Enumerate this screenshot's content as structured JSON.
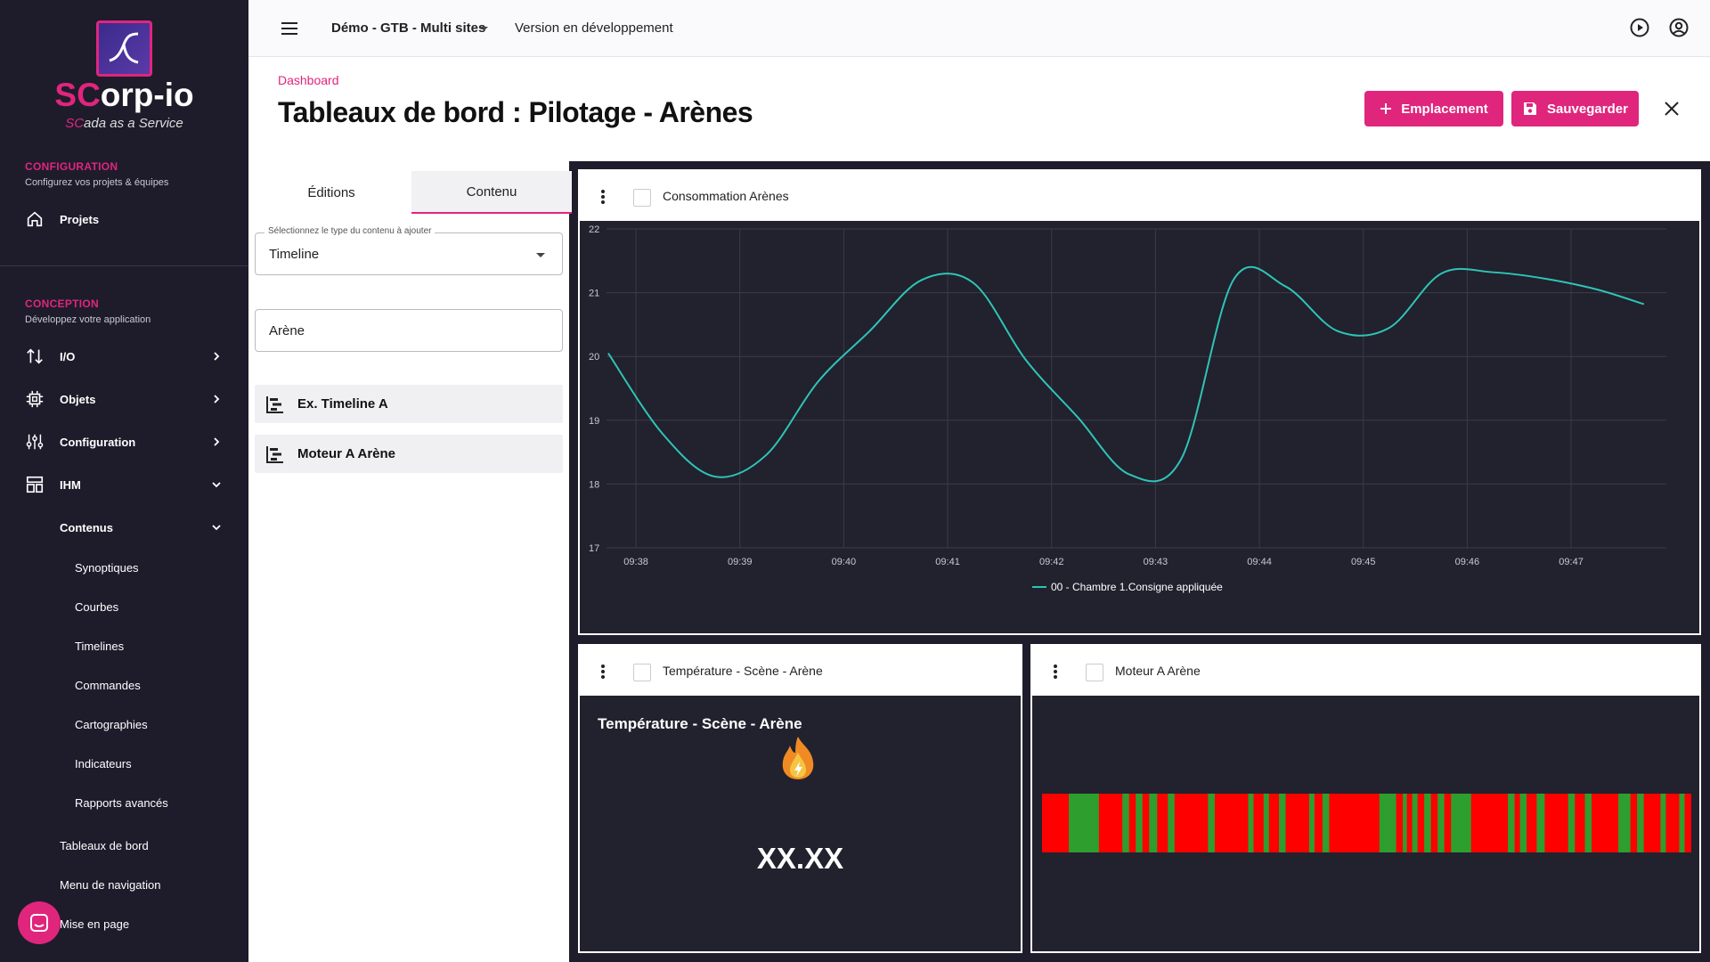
{
  "brand": {
    "name_accent": "SC",
    "name_rest": "orp-io",
    "tagline_accent": "SC",
    "tagline_rest": "ada as a Service"
  },
  "sidebar": {
    "config_title": "CONFIGURATION",
    "config_sub": "Configurez vos projets & équipes",
    "projects": "Projets",
    "conception_title": "CONCEPTION",
    "conception_sub": "Développez votre application",
    "items": [
      "I/O",
      "Objets",
      "Configuration",
      "IHM"
    ],
    "contenus": "Contenus",
    "contenus_items": [
      "Synoptiques",
      "Courbes",
      "Timelines",
      "Commandes",
      "Cartographies",
      "Indicateurs",
      "Rapports avancés"
    ],
    "bottom_items": [
      "Tableaux de bord",
      "Menu de navigation",
      "Mise en page"
    ]
  },
  "topbar": {
    "project": "Démo - GTB - Multi sites",
    "version": "Version en développement"
  },
  "header": {
    "breadcrumb": "Dashboard",
    "title": "Tableaux de bord : Pilotage - Arènes",
    "add_label": "Emplacement",
    "save_label": "Sauvegarder"
  },
  "panel": {
    "tabs": [
      "Éditions",
      "Contenu"
    ],
    "select_legend": "Sélectionnez le type du contenu à ajouter",
    "select_value": "Timeline",
    "search_value": "Arène",
    "items": [
      "Ex. Timeline A",
      "Moteur A Arène"
    ]
  },
  "widgets": {
    "chart_title": "Consommation Arènes",
    "temp_title": "Température - Scène - Arène",
    "temp_value": "XX.XX",
    "timeline_title": "Moteur A Arène"
  },
  "colors": {
    "accent": "#e0257d",
    "line": "#2ec4b6",
    "on": "#2e9e2e",
    "off": "#ff0000"
  },
  "chart_data": {
    "type": "line",
    "ylim": [
      17,
      22
    ],
    "yticks": [
      "17",
      "18",
      "19",
      "20",
      "21",
      "22"
    ],
    "xticks": [
      "09:38",
      "09:39",
      "09:40",
      "09:41",
      "09:42",
      "09:43",
      "09:44",
      "09:45",
      "09:46",
      "09:47"
    ],
    "x": [
      "09:37:44",
      "09:38:15",
      "09:38:45",
      "09:39:15",
      "09:39:45",
      "09:40:15",
      "09:40:45",
      "09:41:15",
      "09:41:45",
      "09:42:15",
      "09:42:45",
      "09:43:15",
      "09:43:45",
      "09:44:15",
      "09:44:45",
      "09:45:15",
      "09:45:45",
      "09:46:15",
      "09:46:45",
      "09:47:15",
      "09:47:42"
    ],
    "series": [
      {
        "name": "00 - Chambre 1.Consigne appliquée",
        "values": [
          20.05,
          18.8,
          18.12,
          18.45,
          19.6,
          20.4,
          21.2,
          21.15,
          19.95,
          19.05,
          18.15,
          18.4,
          21.2,
          21.1,
          20.4,
          20.45,
          21.3,
          21.32,
          21.22,
          21.05,
          20.82
        ]
      }
    ]
  },
  "timeline_segments": [
    {
      "s": "off",
      "w": 4
    },
    {
      "s": "on",
      "w": 4.5
    },
    {
      "s": "off",
      "w": 3.5
    },
    {
      "s": "on",
      "w": 1
    },
    {
      "s": "off",
      "w": 1
    },
    {
      "s": "on",
      "w": 1
    },
    {
      "s": "off",
      "w": 1
    },
    {
      "s": "on",
      "w": 1.2
    },
    {
      "s": "off",
      "w": 1.6
    },
    {
      "s": "on",
      "w": 1
    },
    {
      "s": "off",
      "w": 5
    },
    {
      "s": "on",
      "w": 1
    },
    {
      "s": "off",
      "w": 5
    },
    {
      "s": "on",
      "w": 0.8
    },
    {
      "s": "off",
      "w": 1.5
    },
    {
      "s": "on",
      "w": 0.8
    },
    {
      "s": "off",
      "w": 1.5
    },
    {
      "s": "on",
      "w": 1
    },
    {
      "s": "off",
      "w": 3.5
    },
    {
      "s": "on",
      "w": 0.8
    },
    {
      "s": "off",
      "w": 1.2
    },
    {
      "s": "on",
      "w": 1
    },
    {
      "s": "off",
      "w": 7.5
    },
    {
      "s": "on",
      "w": 2.5
    },
    {
      "s": "off",
      "w": 1
    },
    {
      "s": "on",
      "w": 0.6
    },
    {
      "s": "off",
      "w": 0.8
    },
    {
      "s": "on",
      "w": 0.8
    },
    {
      "s": "off",
      "w": 1
    },
    {
      "s": "on",
      "w": 1
    },
    {
      "s": "off",
      "w": 1
    },
    {
      "s": "on",
      "w": 1
    },
    {
      "s": "off",
      "w": 1
    },
    {
      "s": "on",
      "w": 3
    },
    {
      "s": "off",
      "w": 5.5
    },
    {
      "s": "on",
      "w": 1
    },
    {
      "s": "off",
      "w": 0.8
    },
    {
      "s": "on",
      "w": 1
    },
    {
      "s": "off",
      "w": 1.5
    },
    {
      "s": "on",
      "w": 1.2
    },
    {
      "s": "off",
      "w": 3.5
    },
    {
      "s": "on",
      "w": 1
    },
    {
      "s": "off",
      "w": 1.5
    },
    {
      "s": "on",
      "w": 1
    },
    {
      "s": "off",
      "w": 4
    },
    {
      "s": "on",
      "w": 1.8
    },
    {
      "s": "off",
      "w": 1
    },
    {
      "s": "on",
      "w": 1
    },
    {
      "s": "off",
      "w": 2.5
    },
    {
      "s": "on",
      "w": 0.8
    },
    {
      "s": "off",
      "w": 2
    },
    {
      "s": "on",
      "w": 0.8
    },
    {
      "s": "off",
      "w": 1
    }
  ]
}
